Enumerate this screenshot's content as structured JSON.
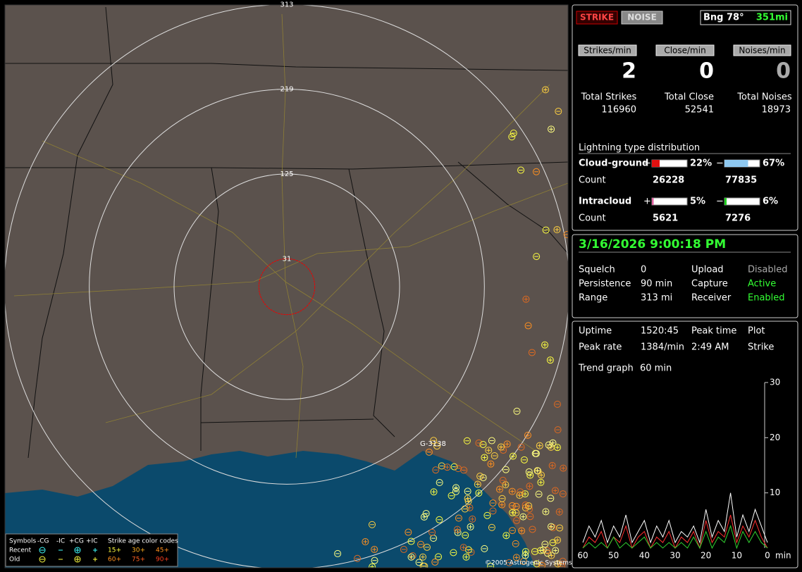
{
  "map": {
    "range_labels": [
      313,
      219,
      125,
      31
    ],
    "station_label": "G-3138",
    "copyright": "©2005 Astrogenic Systems",
    "legend": {
      "symbols": "Symbols",
      "types": [
        "-CG",
        "-IC",
        "+CG",
        "+IC"
      ],
      "age_title": "Strike age color codes",
      "recent": "Recent",
      "old": "Old",
      "recent_ages": [
        "15+",
        "30+",
        "45+"
      ],
      "old_ages": [
        "60+",
        "75+",
        "90+"
      ]
    }
  },
  "header": {
    "strike_button": "STRIKE",
    "noise_button": "NOISE",
    "bearing": "Bng 78°",
    "distance": "351mi"
  },
  "rates": [
    {
      "label": "Strikes/min",
      "value": 2
    },
    {
      "label": "Close/min",
      "value": 0
    },
    {
      "label": "Noises/min",
      "value": 0
    }
  ],
  "totals": [
    {
      "label": "Total Strikes",
      "value": 116960
    },
    {
      "label": "Total Close",
      "value": 52541
    },
    {
      "label": "Total Noises",
      "value": 18973
    }
  ],
  "distribution": {
    "title": "Lightning type distribution",
    "count_label": "Count",
    "rows": [
      {
        "label": "Cloud-ground",
        "positive": {
          "sign": "+",
          "percent": 22,
          "percent_label": "22%",
          "count": 26228,
          "color": "#e01010"
        },
        "negative": {
          "sign": "−",
          "percent": 67,
          "percent_label": "67%",
          "count": 77835,
          "color": "#8ec8f0"
        }
      },
      {
        "label": "Intracloud",
        "positive": {
          "sign": "+",
          "percent": 5,
          "percent_label": "5%",
          "count": 5621,
          "color": "#e060a0"
        },
        "negative": {
          "sign": "−",
          "percent": 6,
          "percent_label": "6%",
          "count": 7276,
          "color": "#20d020"
        }
      }
    ]
  },
  "status": {
    "datetime": "3/16/2026 9:00:18 PM",
    "rows": [
      [
        "Squelch",
        "0",
        "Upload",
        "Disabled"
      ],
      [
        "Persistence",
        "90 min",
        "Capture",
        "Active"
      ],
      [
        "Range",
        "313 mi",
        "Receiver",
        "Enabled"
      ]
    ]
  },
  "stats": {
    "rows": [
      [
        "Uptime",
        "1520:45",
        "Peak time",
        "Plot"
      ],
      [
        "Peak rate",
        "1384/min",
        "2:49 AM",
        "Strike"
      ]
    ],
    "trend_label": "Trend graph",
    "trend_value": "60 min"
  },
  "chart_data": {
    "type": "line",
    "x": [
      60,
      58,
      56,
      54,
      52,
      50,
      48,
      46,
      44,
      42,
      40,
      38,
      36,
      34,
      32,
      30,
      28,
      26,
      24,
      22,
      20,
      18,
      16,
      14,
      12,
      10,
      8,
      6,
      4,
      2,
      0
    ],
    "xlim": [
      60,
      0
    ],
    "xticks": [
      60,
      50,
      40,
      30,
      20,
      10,
      0
    ],
    "x_label": "min",
    "ylim": [
      0,
      30
    ],
    "yticks": [
      10,
      20,
      30
    ],
    "series": [
      {
        "color": "#ffffff",
        "values": [
          1,
          4,
          2,
          5,
          1,
          4,
          2,
          6,
          1,
          3,
          5,
          1,
          4,
          2,
          5,
          1,
          3,
          2,
          4,
          1,
          7,
          2,
          5,
          3,
          10,
          2,
          6,
          3,
          7,
          4,
          1
        ]
      },
      {
        "color": "#ff3030",
        "values": [
          0,
          2,
          1,
          3,
          0,
          2,
          1,
          4,
          0,
          2,
          3,
          0,
          2,
          1,
          3,
          0,
          2,
          1,
          3,
          0,
          5,
          1,
          3,
          2,
          6,
          1,
          4,
          2,
          5,
          2,
          0
        ]
      },
      {
        "color": "#30d030",
        "values": [
          0,
          1,
          0,
          1,
          0,
          2,
          0,
          1,
          0,
          1,
          2,
          0,
          1,
          0,
          1,
          0,
          1,
          0,
          2,
          0,
          3,
          0,
          2,
          1,
          4,
          0,
          3,
          1,
          3,
          1,
          0
        ]
      }
    ]
  }
}
